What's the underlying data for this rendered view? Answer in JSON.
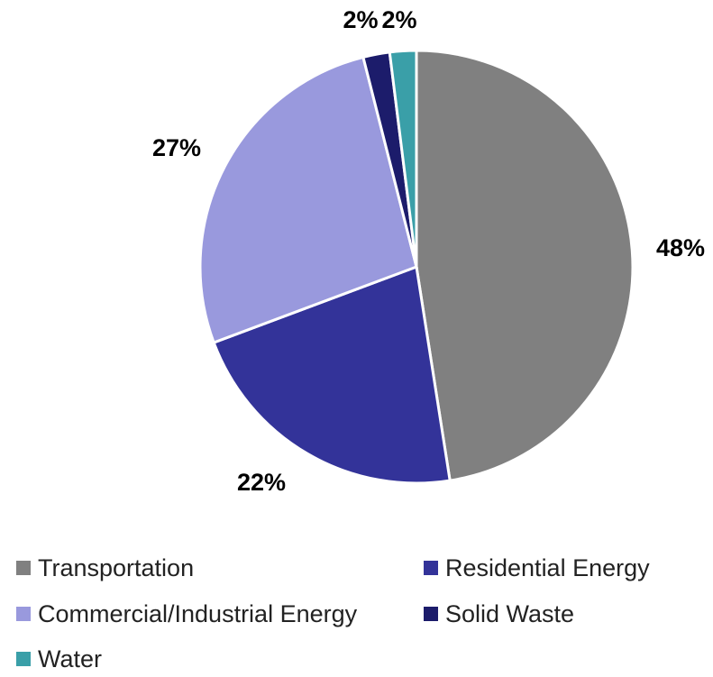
{
  "chart_data": {
    "type": "pie",
    "title": "",
    "legend_position": "bottom",
    "slices": [
      {
        "name": "Transportation",
        "value": 48,
        "label": "48%",
        "color": "#808080"
      },
      {
        "name": "Residential Energy",
        "value": 22,
        "label": "22%",
        "color": "#333399"
      },
      {
        "name": "Commercial/Industrial Energy",
        "value": 27,
        "label": "27%",
        "color": "#9999DD"
      },
      {
        "name": "Solid Waste",
        "value": 2,
        "label": "2%",
        "color": "#1C1C6B"
      },
      {
        "name": "Water",
        "value": 2,
        "label": "2%",
        "color": "#3A9FA8"
      }
    ]
  }
}
